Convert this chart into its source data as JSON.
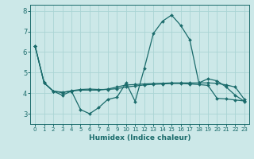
{
  "title": "",
  "xlabel": "Humidex (Indice chaleur)",
  "bg_color": "#cce8e8",
  "grid_color": "#aad4d4",
  "line_color": "#1a6b6b",
  "xlim": [
    -0.5,
    23.5
  ],
  "ylim": [
    2.5,
    8.3
  ],
  "xticks": [
    0,
    1,
    2,
    3,
    4,
    5,
    6,
    7,
    8,
    9,
    10,
    11,
    12,
    13,
    14,
    15,
    16,
    17,
    18,
    19,
    20,
    21,
    22,
    23
  ],
  "yticks": [
    3,
    4,
    5,
    6,
    7,
    8
  ],
  "line1_x": [
    0,
    1,
    2,
    3,
    4,
    5,
    6,
    7,
    8,
    9,
    10,
    11,
    12,
    13,
    14,
    15,
    16,
    17,
    18,
    19,
    20,
    21,
    22,
    23
  ],
  "line1_y": [
    6.3,
    4.5,
    4.1,
    3.9,
    4.1,
    3.2,
    3.0,
    3.3,
    3.7,
    3.8,
    4.5,
    3.6,
    5.2,
    6.9,
    7.5,
    7.8,
    7.3,
    6.6,
    4.5,
    4.7,
    4.6,
    4.3,
    3.9,
    3.6
  ],
  "line2_x": [
    0,
    1,
    2,
    3,
    4,
    5,
    6,
    7,
    8,
    9,
    10,
    11,
    12,
    13,
    14,
    15,
    16,
    17,
    18,
    19,
    20,
    21,
    22,
    23
  ],
  "line2_y": [
    6.3,
    4.5,
    4.1,
    4.05,
    4.1,
    4.15,
    4.15,
    4.15,
    4.2,
    4.3,
    4.4,
    4.42,
    4.45,
    4.47,
    4.48,
    4.5,
    4.5,
    4.5,
    4.5,
    4.5,
    4.48,
    4.4,
    4.3,
    3.7
  ],
  "line3_x": [
    0,
    1,
    2,
    3,
    4,
    5,
    6,
    7,
    8,
    9,
    10,
    11,
    12,
    13,
    14,
    15,
    16,
    17,
    18,
    19,
    20,
    21,
    22,
    23
  ],
  "line3_y": [
    6.3,
    4.5,
    4.1,
    4.02,
    4.12,
    4.18,
    4.2,
    4.18,
    4.18,
    4.22,
    4.3,
    4.35,
    4.4,
    4.43,
    4.45,
    4.47,
    4.47,
    4.45,
    4.42,
    4.38,
    3.75,
    3.72,
    3.67,
    3.62
  ]
}
